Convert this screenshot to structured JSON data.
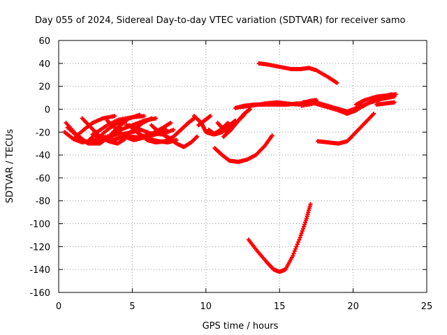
{
  "chart_data": {
    "type": "scatter",
    "title": "Day 055 of 2024, Sidereal Day-to-day VTEC variation (SDTVAR) for receiver samo",
    "xlabel": "GPS time / hours",
    "ylabel": "SDTVAR / TECUs",
    "xlim": [
      0,
      25
    ],
    "ylim": [
      -160,
      60
    ],
    "xticks": [
      0,
      5,
      10,
      15,
      20,
      25
    ],
    "yticks": [
      -160,
      -140,
      -120,
      -100,
      -80,
      -60,
      -40,
      -20,
      0,
      20,
      40,
      60
    ],
    "grid": true,
    "series_color": "#ff0000",
    "arcs": [
      [
        [
          0.4,
          -20
        ],
        [
          1.0,
          -26
        ],
        [
          1.6,
          -29
        ],
        [
          2.4,
          -27
        ],
        [
          3.2,
          -24
        ],
        [
          4.2,
          -22
        ],
        [
          5.0,
          -20
        ],
        [
          5.6,
          -18
        ]
      ],
      [
        [
          0.5,
          -12
        ],
        [
          1.2,
          -22
        ],
        [
          1.8,
          -28
        ],
        [
          2.4,
          -30
        ],
        [
          3.0,
          -28
        ],
        [
          3.6,
          -22
        ],
        [
          4.2,
          -16
        ]
      ],
      [
        [
          0.6,
          -16
        ],
        [
          1.3,
          -24
        ],
        [
          2.0,
          -30
        ],
        [
          2.8,
          -30
        ],
        [
          3.4,
          -24
        ],
        [
          4.0,
          -16
        ],
        [
          4.6,
          -10
        ]
      ],
      [
        [
          1.0,
          -26
        ],
        [
          1.7,
          -18
        ],
        [
          2.3,
          -12
        ],
        [
          3.0,
          -8
        ],
        [
          3.8,
          -6
        ]
      ],
      [
        [
          1.6,
          -8
        ],
        [
          2.2,
          -16
        ],
        [
          2.8,
          -24
        ],
        [
          3.4,
          -28
        ],
        [
          4.0,
          -30
        ],
        [
          4.5,
          -26
        ]
      ],
      [
        [
          2.0,
          -28
        ],
        [
          2.6,
          -20
        ],
        [
          3.3,
          -14
        ],
        [
          4.1,
          -9
        ],
        [
          5.0,
          -7
        ],
        [
          5.8,
          -6
        ]
      ],
      [
        [
          2.3,
          -22
        ],
        [
          3.0,
          -26
        ],
        [
          3.7,
          -27
        ],
        [
          4.4,
          -24
        ],
        [
          5.1,
          -18
        ],
        [
          5.7,
          -12
        ],
        [
          6.3,
          -8
        ]
      ],
      [
        [
          2.6,
          -26
        ],
        [
          3.3,
          -18
        ],
        [
          4.0,
          -12
        ],
        [
          4.8,
          -8
        ],
        [
          5.5,
          -5
        ]
      ],
      [
        [
          3.5,
          -25
        ],
        [
          4.2,
          -18
        ],
        [
          5.0,
          -14
        ],
        [
          5.8,
          -10
        ],
        [
          6.6,
          -8
        ]
      ],
      [
        [
          3.3,
          -10
        ],
        [
          3.9,
          -17
        ],
        [
          4.5,
          -24
        ],
        [
          5.1,
          -27
        ],
        [
          5.7,
          -25
        ]
      ],
      [
        [
          4.8,
          -14
        ],
        [
          5.4,
          -21
        ],
        [
          6.1,
          -26
        ],
        [
          6.8,
          -28
        ],
        [
          7.4,
          -29
        ],
        [
          8.0,
          -27
        ]
      ],
      [
        [
          4.2,
          -22
        ],
        [
          5.0,
          -24
        ],
        [
          5.8,
          -25
        ],
        [
          6.6,
          -22
        ],
        [
          7.3,
          -18
        ]
      ],
      [
        [
          5.2,
          -18
        ],
        [
          6.0,
          -27
        ],
        [
          6.6,
          -29
        ],
        [
          7.2,
          -28
        ],
        [
          7.8,
          -24
        ],
        [
          8.3,
          -18
        ],
        [
          8.8,
          -12
        ],
        [
          9.2,
          -8
        ]
      ],
      [
        [
          4.6,
          -14
        ],
        [
          5.4,
          -17
        ],
        [
          6.2,
          -21
        ],
        [
          7.0,
          -22
        ],
        [
          7.8,
          -18
        ]
      ],
      [
        [
          6.3,
          -14
        ],
        [
          6.9,
          -21
        ],
        [
          7.5,
          -25
        ],
        [
          8.0,
          -30
        ],
        [
          8.5,
          -33
        ],
        [
          9.0,
          -29
        ],
        [
          9.4,
          -24
        ]
      ],
      [
        [
          5.6,
          -24
        ],
        [
          6.4,
          -21
        ],
        [
          7.1,
          -16
        ],
        [
          7.6,
          -12
        ]
      ],
      [
        [
          9.2,
          -6
        ],
        [
          9.7,
          -12
        ],
        [
          10.0,
          -20
        ],
        [
          10.5,
          -22
        ],
        [
          11.0,
          -18
        ],
        [
          11.5,
          -12
        ]
      ],
      [
        [
          10.2,
          -18
        ],
        [
          10.6,
          -22
        ],
        [
          11.1,
          -20
        ],
        [
          11.6,
          -14
        ],
        [
          12.0,
          -10
        ]
      ],
      [
        [
          10.8,
          -12
        ],
        [
          11.3,
          -19
        ],
        [
          11.8,
          -16
        ],
        [
          12.2,
          -10
        ],
        [
          12.6,
          -5
        ]
      ],
      [
        [
          11.2,
          -24
        ],
        [
          11.7,
          -18
        ],
        [
          12.2,
          -10
        ],
        [
          12.6,
          -4
        ],
        [
          13.0,
          0
        ]
      ],
      [
        [
          9.5,
          -14
        ],
        [
          9.9,
          -10
        ],
        [
          10.3,
          -6
        ]
      ],
      [
        [
          12.0,
          1
        ],
        [
          12.6,
          3
        ],
        [
          13.3,
          4
        ],
        [
          14.0,
          4
        ],
        [
          14.8,
          4
        ],
        [
          15.5,
          4
        ],
        [
          16.2,
          5
        ],
        [
          17.0,
          5
        ]
      ],
      [
        [
          12.4,
          2
        ],
        [
          13.1,
          3
        ],
        [
          14.0,
          5
        ],
        [
          14.8,
          6
        ],
        [
          15.5,
          5
        ],
        [
          16.3,
          4
        ],
        [
          17.0,
          7
        ],
        [
          17.5,
          8
        ]
      ],
      [
        [
          16.6,
          6
        ],
        [
          17.2,
          7
        ],
        [
          18.0,
          4
        ],
        [
          18.8,
          1
        ],
        [
          19.6,
          -2
        ],
        [
          20.4,
          2
        ],
        [
          21.2,
          6
        ],
        [
          22.0,
          9
        ],
        [
          22.8,
          11
        ]
      ],
      [
        [
          16.5,
          3
        ],
        [
          17.4,
          5
        ],
        [
          18.2,
          2
        ],
        [
          19.0,
          -1
        ],
        [
          19.6,
          -4
        ],
        [
          20.2,
          -1
        ],
        [
          21.0,
          5
        ],
        [
          21.8,
          10
        ],
        [
          22.6,
          13
        ]
      ],
      [
        [
          20.2,
          4
        ],
        [
          20.8,
          8
        ],
        [
          21.6,
          11
        ],
        [
          22.3,
          12
        ],
        [
          22.9,
          13
        ]
      ],
      [
        [
          13.6,
          40
        ],
        [
          14.2,
          39
        ],
        [
          15.0,
          37
        ],
        [
          15.8,
          35
        ],
        [
          16.4,
          35
        ],
        [
          17.0,
          36
        ],
        [
          17.5,
          34
        ],
        [
          18.3,
          28
        ],
        [
          18.9,
          23
        ]
      ],
      [
        [
          10.6,
          -34
        ],
        [
          11.1,
          -40
        ],
        [
          11.6,
          -45
        ],
        [
          12.2,
          -46
        ],
        [
          12.8,
          -44
        ],
        [
          13.4,
          -40
        ],
        [
          14.0,
          -32
        ],
        [
          14.5,
          -23
        ]
      ],
      [
        [
          17.6,
          -28
        ],
        [
          18.3,
          -29
        ],
        [
          19.0,
          -30
        ],
        [
          19.6,
          -28
        ],
        [
          20.2,
          -20
        ],
        [
          20.8,
          -12
        ],
        [
          21.4,
          -4
        ]
      ],
      [
        [
          21.6,
          4
        ],
        [
          22.2,
          5
        ],
        [
          22.8,
          6
        ]
      ],
      [
        [
          12.9,
          -114
        ],
        [
          13.5,
          -124
        ],
        [
          14.1,
          -133
        ],
        [
          14.6,
          -140
        ],
        [
          15.0,
          -142
        ],
        [
          15.4,
          -140
        ],
        [
          15.9,
          -128
        ],
        [
          16.4,
          -112
        ],
        [
          16.8,
          -97
        ],
        [
          17.1,
          -83
        ]
      ]
    ]
  }
}
